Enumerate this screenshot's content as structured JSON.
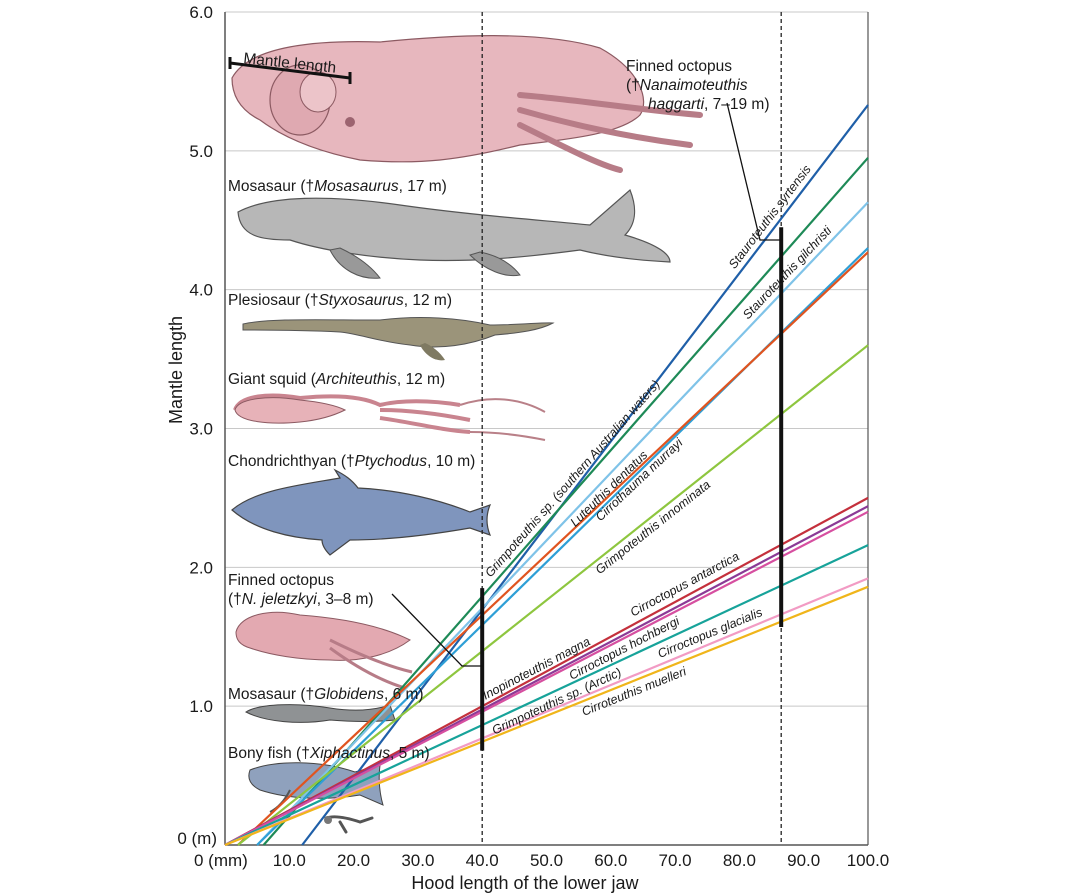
{
  "chart_data": {
    "type": "line",
    "x_axis": {
      "label": "Hood length of the lower jaw",
      "unit_label": "0 (mm)",
      "range": [
        0,
        100
      ],
      "ticks": [
        "10.0",
        "20.0",
        "30.0",
        "40.0",
        "50.0",
        "60.0",
        "70.0",
        "80.0",
        "90.0",
        "100.0"
      ],
      "tick_values": [
        10,
        20,
        30,
        40,
        50,
        60,
        70,
        80,
        90,
        100
      ]
    },
    "y_axis": {
      "label": "Mantle length",
      "unit_label": "0 (m)",
      "range": [
        0,
        6
      ],
      "ticks": [
        "1.0",
        "2.0",
        "3.0",
        "4.0",
        "5.0",
        "6.0"
      ],
      "tick_values": [
        1,
        2,
        3,
        4,
        5,
        6
      ]
    },
    "grid": "horizontal",
    "reference_lines": [
      {
        "x": 40,
        "y_range": [
          0.68,
          1.85
        ]
      },
      {
        "x": 86.5,
        "y_range": [
          1.57,
          4.45
        ]
      }
    ],
    "series": [
      {
        "name": "Stauroteuthis syrtensis",
        "color": "#1f5fa8",
        "points": [
          [
            12,
            0
          ],
          [
            100,
            5.33
          ]
        ]
      },
      {
        "name": "Grimpoteuthis sp. (southern Australian waters)",
        "color": "#1e8a57",
        "points": [
          [
            6,
            0
          ],
          [
            100,
            4.95
          ]
        ]
      },
      {
        "name": "Stauroteuthis gilchristi",
        "color": "#7fc3e8",
        "points": [
          [
            5,
            0
          ],
          [
            100,
            4.63
          ]
        ]
      },
      {
        "name": "Luteuthis dentatus",
        "color": "#2e9fd6",
        "points": [
          [
            5,
            0
          ],
          [
            100,
            4.3
          ]
        ]
      },
      {
        "name": "Cirrothauma murrayi",
        "color": "#e0541f",
        "points": [
          [
            2,
            0
          ],
          [
            100,
            4.27
          ]
        ]
      },
      {
        "name": "Grimpoteuthis innominata",
        "color": "#8ec63f",
        "points": [
          [
            2,
            0
          ],
          [
            100,
            3.6
          ]
        ]
      },
      {
        "name": "Cirroctopus antarctica",
        "color": "#c4303c",
        "points": [
          [
            0,
            0
          ],
          [
            100,
            2.5
          ]
        ]
      },
      {
        "name": "Inopinoteuthis magna",
        "color": "#8b3a96",
        "points": [
          [
            0,
            0
          ],
          [
            100,
            2.44
          ]
        ]
      },
      {
        "name": "Cirroctopus hochbergi",
        "color": "#d64fa0",
        "points": [
          [
            0,
            0
          ],
          [
            100,
            2.4
          ]
        ]
      },
      {
        "name": "Grimpoteuthis sp. (Arctic)",
        "color": "#17a39a",
        "points": [
          [
            0,
            0
          ],
          [
            100,
            2.16
          ]
        ]
      },
      {
        "name": "Cirroctopus glacialis",
        "color": "#f29bc4",
        "points": [
          [
            0,
            0
          ],
          [
            100,
            1.92
          ]
        ]
      },
      {
        "name": "Cirroteuthis muelleri",
        "color": "#f0b51a",
        "points": [
          [
            0,
            0
          ],
          [
            100,
            1.86
          ]
        ]
      }
    ],
    "annotations": {
      "mantle_length": "Mantle length",
      "finned_large": {
        "line1": "Finned octopus",
        "line2_prefix": "(†",
        "line2_italic": "Nanaimoteuthis",
        "line3_italic": "haggarti",
        "line3_suffix": ", 7–19 m)"
      },
      "mosasaurus": {
        "prefix": "Mosasaur (†",
        "italic": "Mosasaurus",
        "suffix": ", 17 m)"
      },
      "plesiosaur": {
        "prefix": "Plesiosaur (†",
        "italic": "Styxosaurus",
        "suffix": ", 12 m)"
      },
      "giant_squid": {
        "prefix": "Giant squid (",
        "italic": "Architeuthis",
        "suffix": ", 12 m)"
      },
      "chondrichthyan": {
        "prefix": "Chondrichthyan (†",
        "italic": "Ptychodus",
        "suffix": ", 10 m)"
      },
      "finned_small": {
        "line1": "Finned octopus",
        "line2_prefix": "(†",
        "line2_italic": "N. jeletzkyi",
        "line2_suffix": ", 3–8 m)"
      },
      "globidens": {
        "prefix": "Mosasaur (†",
        "italic": "Globidens",
        "suffix": ", 6 m)"
      },
      "bony_fish": {
        "prefix": "Bony fish (†",
        "italic": "Xiphactinus",
        "suffix": ", 5 m)"
      }
    },
    "colors": {
      "grid": "#c8c8c8",
      "axis": "#555555",
      "reference": "#111111"
    }
  }
}
